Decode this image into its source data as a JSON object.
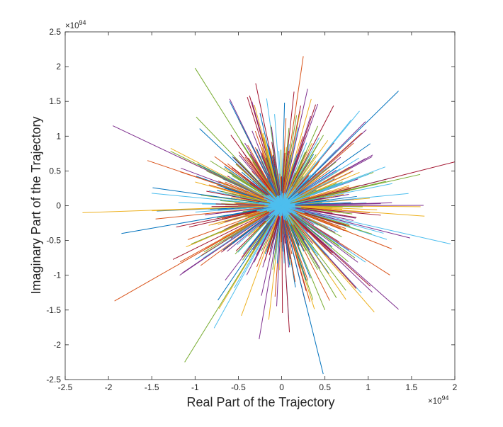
{
  "chart_data": {
    "type": "line",
    "title": "",
    "xlabel": "Real Part of the Trajectory",
    "ylabel": "Imaginary Part of the Trajectory",
    "x_exponent_label": "×10",
    "x_exponent": "94",
    "y_exponent_label": "×10",
    "y_exponent": "94",
    "xlim": [
      -2.5,
      2
    ],
    "ylim": [
      -2.5,
      2.5
    ],
    "x_ticks": [
      "-2.5",
      "-2",
      "-1.5",
      "-1",
      "-0.5",
      "0",
      "0.5",
      "1",
      "1.5",
      "2"
    ],
    "y_ticks": [
      "2.5",
      "2",
      "1.5",
      "1",
      "0.5",
      "0",
      "-0.5",
      "-1",
      "-1.5",
      "-2",
      "-2.5"
    ],
    "x_tick_values": [
      -2.5,
      -2,
      -1.5,
      -1,
      -0.5,
      0,
      0.5,
      1,
      1.5,
      2
    ],
    "y_tick_values": [
      2.5,
      2,
      1.5,
      1,
      0.5,
      0,
      -0.5,
      -1,
      -1.5,
      -2,
      -2.5
    ],
    "grid": false,
    "box": true,
    "legend": "none",
    "colors": [
      "#0072BD",
      "#D95319",
      "#EDB120",
      "#7E2F8E",
      "#77AC30",
      "#4DBEEE",
      "#A2142F"
    ],
    "center": [
      0,
      0
    ],
    "notable_trajectory_endpoints": [
      [
        0.25,
        2.15
      ],
      [
        -1.0,
        1.98
      ],
      [
        1.35,
        1.65
      ],
      [
        -1.95,
        1.15
      ],
      [
        2.0,
        0.63
      ],
      [
        -2.3,
        -0.1
      ],
      [
        1.95,
        -0.55
      ],
      [
        -1.93,
        -1.37
      ],
      [
        -1.12,
        -2.25
      ],
      [
        0.48,
        -2.42
      ],
      [
        1.35,
        -1.49
      ],
      [
        -0.3,
        1.76
      ],
      [
        1.65,
        -0.15
      ],
      [
        0.8,
        1.23
      ],
      [
        -1.55,
        0.65
      ],
      [
        1.6,
        0.45
      ],
      [
        -1.85,
        -0.4
      ],
      [
        -0.26,
        -1.92
      ],
      [
        0.09,
        -1.82
      ],
      [
        1.07,
        -1.53
      ],
      [
        -0.78,
        -1.76
      ],
      [
        1.27,
        -0.62
      ],
      [
        0.5,
        -1.5
      ],
      [
        -0.6,
        1.5
      ],
      [
        0.3,
        1.68
      ]
    ],
    "series_count_estimate": 2000
  }
}
